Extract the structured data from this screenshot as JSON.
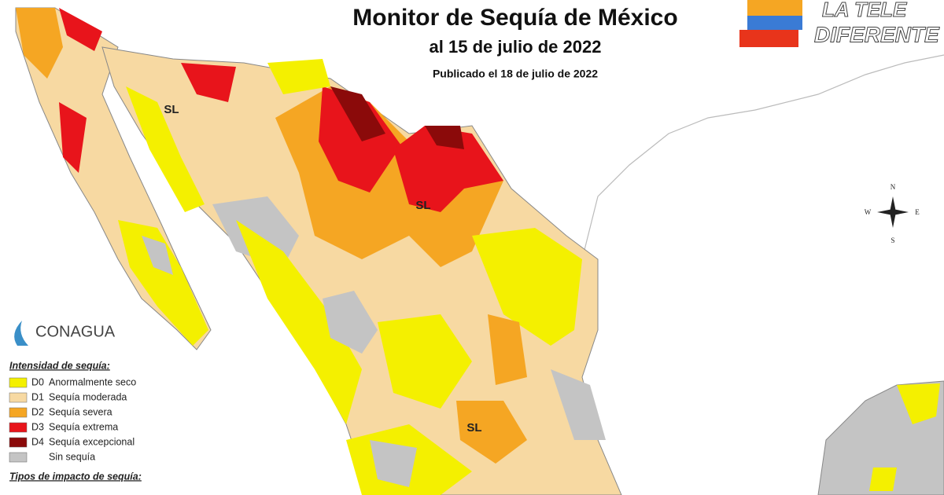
{
  "header": {
    "title": "Monitor de Sequía de México",
    "date": "al 15 de julio de 2022",
    "published": "Publicado el 18 de julio de 2022"
  },
  "brand": {
    "line1": "LA TELE",
    "line2": "DIFERENTE"
  },
  "org": "CONAGUA",
  "legend": {
    "title": "Intensidad de sequía:",
    "items": [
      {
        "code": "D0",
        "label": "Anormalmente seco",
        "color": "#f4f000"
      },
      {
        "code": "D1",
        "label": "Sequía moderada",
        "color": "#f7d9a2"
      },
      {
        "code": "D2",
        "label": "Sequía severa",
        "color": "#f5a623"
      },
      {
        "code": "D3",
        "label": "Sequía extrema",
        "color": "#e8141b"
      },
      {
        "code": "D4",
        "label": "Sequía excepcional",
        "color": "#8b0a0a"
      },
      {
        "code": "",
        "label": "Sin sequía",
        "color": "#c4c4c4"
      }
    ]
  },
  "impact_title": "Tipos de impacto de sequía:",
  "map_labels": [
    "SL",
    "SL",
    "SL"
  ],
  "compass": {
    "n": "N",
    "s": "S",
    "e": "E",
    "w": "W"
  }
}
